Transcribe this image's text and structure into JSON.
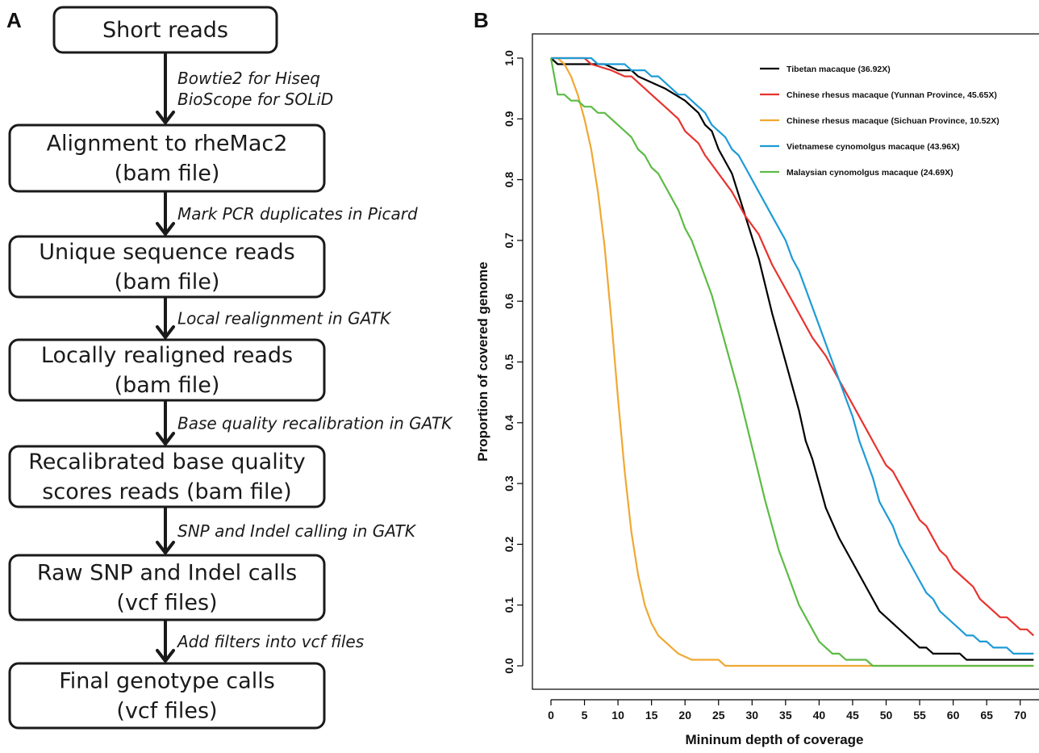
{
  "panels": {
    "left_label": "A",
    "right_label": "B"
  },
  "flowchart": {
    "boxes": [
      {
        "lines": [
          "Short reads"
        ]
      },
      {
        "lines": [
          "Alignment to rheMac2",
          "(bam file)"
        ]
      },
      {
        "lines": [
          "Unique sequence reads",
          "(bam file)"
        ]
      },
      {
        "lines": [
          "Locally realigned reads",
          "(bam file)"
        ]
      },
      {
        "lines": [
          "Recalibrated base quality",
          "scores reads (bam file)"
        ]
      },
      {
        "lines": [
          "Raw SNP and Indel calls",
          "(vcf files)"
        ]
      },
      {
        "lines": [
          "Final genotype calls",
          "(vcf files)"
        ]
      }
    ],
    "steps": [
      {
        "lines": [
          "Bowtie2 for Hiseq",
          "BioScope for SOLiD"
        ]
      },
      {
        "lines": [
          "Mark PCR duplicates in Picard"
        ]
      },
      {
        "lines": [
          "Local realignment in GATK"
        ]
      },
      {
        "lines": [
          "Base quality recalibration in GATK"
        ]
      },
      {
        "lines": [
          "SNP and Indel calling in GATK"
        ]
      },
      {
        "lines": [
          "Add filters into vcf files"
        ]
      }
    ]
  },
  "chart_data": {
    "type": "line",
    "title": "",
    "xlabel": "Mininum depth of coverage",
    "ylabel": "Proportion of covered genome",
    "xlim": [
      0,
      72
    ],
    "ylim": [
      0,
      1.0
    ],
    "xticks": [
      0,
      5,
      10,
      15,
      20,
      25,
      30,
      35,
      40,
      45,
      50,
      55,
      60,
      65,
      70
    ],
    "yticks": [
      "0.0",
      "0.1",
      "0.2",
      "0.3",
      "0.4",
      "0.5",
      "0.6",
      "0.7",
      "0.8",
      "0.9",
      "1.0"
    ],
    "grid": false,
    "legend_position": "top-right",
    "series": [
      {
        "name": "Tibetan macaque (36.92X)",
        "color": "#000000",
        "points": [
          [
            0,
            1.0
          ],
          [
            1,
            0.99
          ],
          [
            5,
            0.99
          ],
          [
            8,
            0.99
          ],
          [
            10,
            0.98
          ],
          [
            12,
            0.98
          ],
          [
            13,
            0.97
          ],
          [
            15,
            0.96
          ],
          [
            17,
            0.95
          ],
          [
            20,
            0.93
          ],
          [
            22,
            0.91
          ],
          [
            23,
            0.89
          ],
          [
            24,
            0.88
          ],
          [
            25,
            0.85
          ],
          [
            27,
            0.81
          ],
          [
            29,
            0.74
          ],
          [
            31,
            0.67
          ],
          [
            33,
            0.58
          ],
          [
            35,
            0.5
          ],
          [
            37,
            0.42
          ],
          [
            38,
            0.37
          ],
          [
            39,
            0.34
          ],
          [
            40,
            0.3
          ],
          [
            41,
            0.26
          ],
          [
            43,
            0.21
          ],
          [
            45,
            0.17
          ],
          [
            47,
            0.13
          ],
          [
            49,
            0.09
          ],
          [
            51,
            0.07
          ],
          [
            53,
            0.05
          ],
          [
            55,
            0.03
          ],
          [
            56,
            0.03
          ],
          [
            57,
            0.02
          ],
          [
            61,
            0.02
          ],
          [
            62,
            0.01
          ],
          [
            72,
            0.01
          ]
        ]
      },
      {
        "name": "Chinese rhesus macaque (Yunnan Province, 45.65X)",
        "color": "#e8332f",
        "points": [
          [
            0,
            1.0
          ],
          [
            5,
            1.0
          ],
          [
            6,
            0.99
          ],
          [
            9,
            0.98
          ],
          [
            11,
            0.97
          ],
          [
            12,
            0.97
          ],
          [
            13,
            0.96
          ],
          [
            15,
            0.94
          ],
          [
            17,
            0.92
          ],
          [
            19,
            0.9
          ],
          [
            20,
            0.88
          ],
          [
            22,
            0.86
          ],
          [
            23,
            0.84
          ],
          [
            25,
            0.81
          ],
          [
            27,
            0.78
          ],
          [
            29,
            0.74
          ],
          [
            31,
            0.71
          ],
          [
            33,
            0.66
          ],
          [
            35,
            0.62
          ],
          [
            37,
            0.58
          ],
          [
            39,
            0.54
          ],
          [
            41,
            0.51
          ],
          [
            43,
            0.47
          ],
          [
            45,
            0.43
          ],
          [
            47,
            0.39
          ],
          [
            49,
            0.35
          ],
          [
            50,
            0.33
          ],
          [
            51,
            0.32
          ],
          [
            53,
            0.28
          ],
          [
            55,
            0.24
          ],
          [
            56,
            0.23
          ],
          [
            58,
            0.19
          ],
          [
            59,
            0.18
          ],
          [
            60,
            0.16
          ],
          [
            62,
            0.14
          ],
          [
            63,
            0.13
          ],
          [
            64,
            0.11
          ],
          [
            66,
            0.09
          ],
          [
            67,
            0.08
          ],
          [
            68,
            0.08
          ],
          [
            69,
            0.07
          ],
          [
            70,
            0.06
          ],
          [
            71,
            0.06
          ],
          [
            72,
            0.05
          ]
        ]
      },
      {
        "name": "Chinese rhesus macaque (Sichuan Province, 10.52X)",
        "color": "#f0a833",
        "points": [
          [
            0,
            1.0
          ],
          [
            1,
            1.0
          ],
          [
            2,
            0.99
          ],
          [
            3,
            0.97
          ],
          [
            4,
            0.94
          ],
          [
            5,
            0.9
          ],
          [
            6,
            0.85
          ],
          [
            7,
            0.78
          ],
          [
            8,
            0.69
          ],
          [
            9,
            0.57
          ],
          [
            10,
            0.44
          ],
          [
            11,
            0.32
          ],
          [
            12,
            0.22
          ],
          [
            13,
            0.15
          ],
          [
            14,
            0.1
          ],
          [
            15,
            0.07
          ],
          [
            16,
            0.05
          ],
          [
            17,
            0.04
          ],
          [
            19,
            0.02
          ],
          [
            21,
            0.01
          ],
          [
            25,
            0.01
          ],
          [
            26,
            0.0
          ],
          [
            72,
            0.0
          ]
        ]
      },
      {
        "name": "Vietnamese cynomolgus macaque (43.96X)",
        "color": "#1e9bd6",
        "points": [
          [
            0,
            1.0
          ],
          [
            6,
            1.0
          ],
          [
            7,
            0.99
          ],
          [
            11,
            0.99
          ],
          [
            12,
            0.98
          ],
          [
            14,
            0.98
          ],
          [
            15,
            0.97
          ],
          [
            16,
            0.97
          ],
          [
            17,
            0.96
          ],
          [
            19,
            0.94
          ],
          [
            20,
            0.94
          ],
          [
            21,
            0.93
          ],
          [
            23,
            0.91
          ],
          [
            24,
            0.89
          ],
          [
            25,
            0.88
          ],
          [
            26,
            0.87
          ],
          [
            27,
            0.85
          ],
          [
            28,
            0.84
          ],
          [
            29,
            0.82
          ],
          [
            31,
            0.78
          ],
          [
            33,
            0.74
          ],
          [
            35,
            0.7
          ],
          [
            36,
            0.67
          ],
          [
            37,
            0.65
          ],
          [
            38,
            0.62
          ],
          [
            40,
            0.56
          ],
          [
            42,
            0.5
          ],
          [
            44,
            0.44
          ],
          [
            45,
            0.41
          ],
          [
            46,
            0.37
          ],
          [
            48,
            0.31
          ],
          [
            49,
            0.27
          ],
          [
            50,
            0.25
          ],
          [
            51,
            0.23
          ],
          [
            52,
            0.2
          ],
          [
            54,
            0.16
          ],
          [
            55,
            0.14
          ],
          [
            56,
            0.12
          ],
          [
            57,
            0.11
          ],
          [
            58,
            0.09
          ],
          [
            60,
            0.07
          ],
          [
            61,
            0.06
          ],
          [
            62,
            0.05
          ],
          [
            63,
            0.05
          ],
          [
            64,
            0.04
          ],
          [
            65,
            0.04
          ],
          [
            66,
            0.03
          ],
          [
            68,
            0.03
          ],
          [
            69,
            0.02
          ],
          [
            72,
            0.02
          ]
        ]
      },
      {
        "name": "Malaysian cynomolgus macaque (24.69X)",
        "color": "#5dbb46",
        "points": [
          [
            0,
            1.0
          ],
          [
            1,
            0.94
          ],
          [
            2,
            0.94
          ],
          [
            3,
            0.93
          ],
          [
            4,
            0.93
          ],
          [
            5,
            0.92
          ],
          [
            6,
            0.92
          ],
          [
            7,
            0.91
          ],
          [
            8,
            0.91
          ],
          [
            10,
            0.89
          ],
          [
            12,
            0.87
          ],
          [
            13,
            0.85
          ],
          [
            14,
            0.84
          ],
          [
            15,
            0.82
          ],
          [
            16,
            0.81
          ],
          [
            18,
            0.77
          ],
          [
            19,
            0.75
          ],
          [
            20,
            0.72
          ],
          [
            21,
            0.7
          ],
          [
            22,
            0.67
          ],
          [
            24,
            0.61
          ],
          [
            26,
            0.53
          ],
          [
            28,
            0.45
          ],
          [
            30,
            0.36
          ],
          [
            32,
            0.27
          ],
          [
            33,
            0.23
          ],
          [
            34,
            0.19
          ],
          [
            35,
            0.16
          ],
          [
            36,
            0.13
          ],
          [
            37,
            0.1
          ],
          [
            38,
            0.08
          ],
          [
            39,
            0.06
          ],
          [
            40,
            0.04
          ],
          [
            41,
            0.03
          ],
          [
            42,
            0.02
          ],
          [
            43,
            0.02
          ],
          [
            44,
            0.01
          ],
          [
            47,
            0.01
          ],
          [
            48,
            0.0
          ],
          [
            72,
            0.0
          ]
        ]
      }
    ]
  }
}
